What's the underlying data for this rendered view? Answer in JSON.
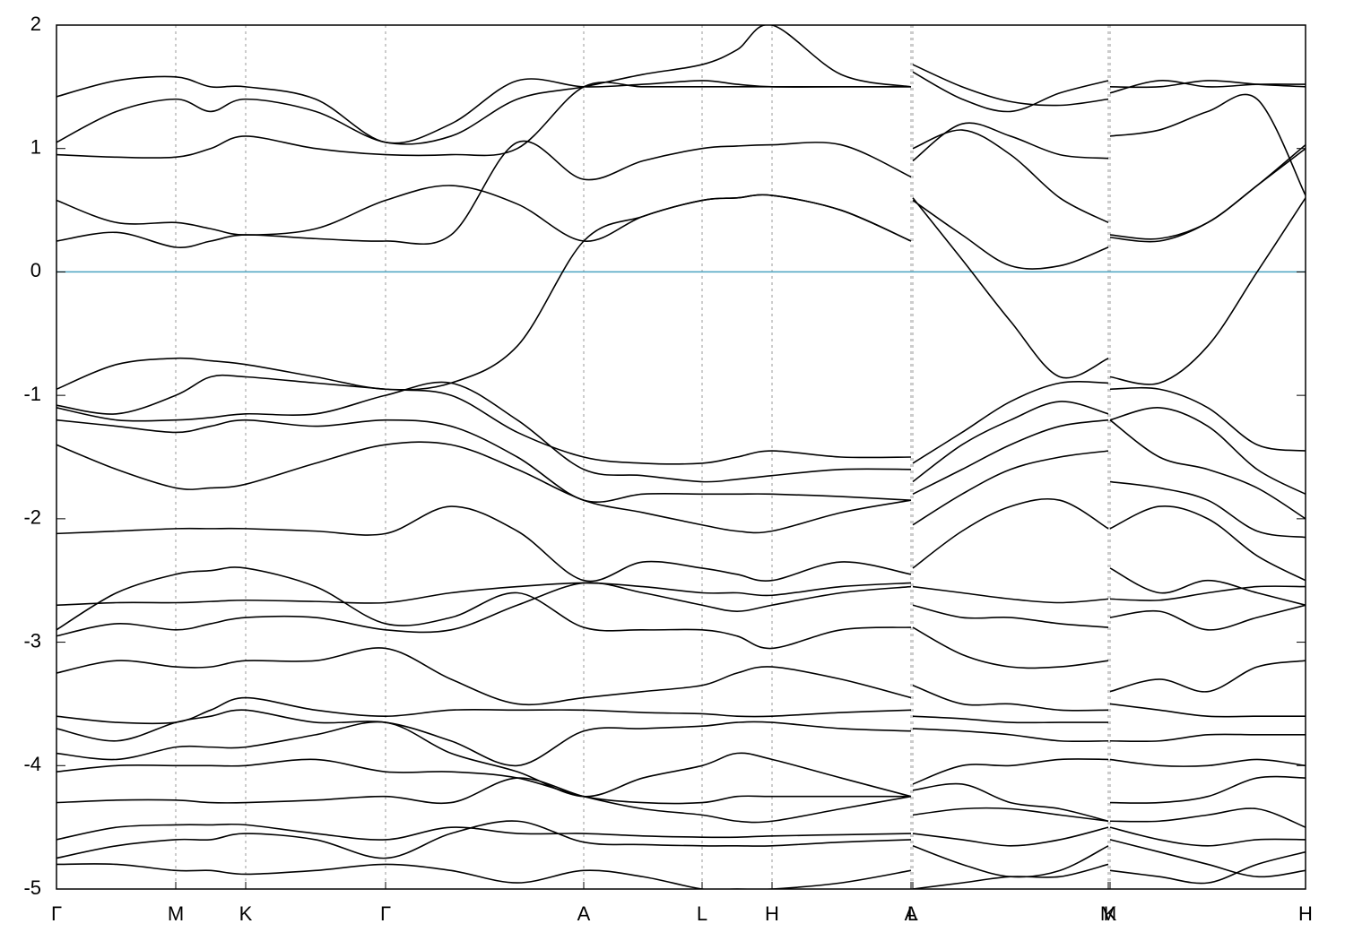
{
  "chart_data": {
    "type": "line",
    "x": [
      0,
      0.67,
      1.33,
      1.72,
      2.11,
      2.89,
      3.67,
      4.4,
      5.14,
      5.88,
      6.54,
      7.2,
      7.59,
      7.98,
      8.75,
      9.53,
      9.54,
      9.55,
      10.1,
      10.64,
      11.19,
      11.73,
      11.74,
      11.75,
      12.3,
      12.84,
      13.39,
      13.93
    ],
    "xlim": [
      0,
      13.93
    ],
    "xticks": [
      {
        "value": 0,
        "label": "Γ"
      },
      {
        "value": 1.33,
        "label": "M"
      },
      {
        "value": 2.11,
        "label": "K"
      },
      {
        "value": 3.67,
        "label": "Γ"
      },
      {
        "value": 5.88,
        "label": "A"
      },
      {
        "value": 7.2,
        "label": "L"
      },
      {
        "value": 7.98,
        "label": "H"
      },
      {
        "value": 9.53,
        "label": "A"
      },
      {
        "value": 9.55,
        "label": "L"
      },
      {
        "value": 11.73,
        "label": "M"
      },
      {
        "value": 11.75,
        "label": "K"
      },
      {
        "value": 13.93,
        "label": "H"
      }
    ],
    "ylim": [
      -5,
      2
    ],
    "yticks": [
      -5,
      -4,
      -3,
      -2,
      -1,
      0,
      1,
      2
    ],
    "xgrid": true,
    "reference_line": {
      "value": 0,
      "color": "#4aa3c0"
    },
    "series": [
      {
        "color": "#000000",
        "values": [
          -0.95,
          -0.75,
          -0.7,
          -0.72,
          -0.75,
          -0.85,
          -0.95,
          -0.9,
          -0.6,
          0.25,
          0.45,
          0.58,
          0.6,
          0.62,
          0.5,
          0.25,
          null,
          0.6,
          0.1,
          -0.4,
          -0.85,
          -0.7,
          null,
          -0.85,
          -0.9,
          -0.6,
          0,
          0.6
        ]
      },
      {
        "color": "#000000",
        "values": [
          0.25,
          0.32,
          0.2,
          0.25,
          0.3,
          0.27,
          0.25,
          0.3,
          1.05,
          0.75,
          0.9,
          1.0,
          1.02,
          1.03,
          1.03,
          0.77,
          null,
          1.0,
          1.15,
          0.95,
          0.6,
          0.4,
          null,
          0.3,
          0.27,
          0.4,
          0.7,
          1.0
        ]
      },
      {
        "color": "#000000",
        "values": [
          0.58,
          0.4,
          0.4,
          0.35,
          0.3,
          0.35,
          0.58,
          0.7,
          0.55,
          0.25,
          0.45,
          0.58,
          0.6,
          0.62,
          0.5,
          0.25,
          null,
          0.58,
          0.3,
          0.05,
          0.05,
          0.2,
          null,
          0.28,
          0.25,
          0.4,
          0.7,
          1.03
        ]
      },
      {
        "color": "#000000",
        "values": [
          0.95,
          0.93,
          0.93,
          1.0,
          1.1,
          1.0,
          0.95,
          0.95,
          1.0,
          1.5,
          1.5,
          1.5,
          1.5,
          1.5,
          1.5,
          1.5,
          null,
          0.9,
          1.2,
          1.1,
          0.95,
          0.92,
          null,
          1.1,
          1.15,
          1.3,
          1.4,
          0.62
        ]
      },
      {
        "color": "#000000",
        "values": [
          1.05,
          1.3,
          1.4,
          1.3,
          1.4,
          1.3,
          1.05,
          1.1,
          1.4,
          1.5,
          1.6,
          1.68,
          1.8,
          2.0,
          1.6,
          1.5,
          null,
          1.68,
          1.5,
          1.38,
          1.35,
          1.4,
          null,
          1.5,
          1.5,
          1.55,
          1.52,
          1.5
        ]
      },
      {
        "color": "#000000",
        "values": [
          1.42,
          1.55,
          1.58,
          1.5,
          1.5,
          1.4,
          1.05,
          1.2,
          1.55,
          1.5,
          1.52,
          1.55,
          1.52,
          1.5,
          1.5,
          1.5,
          null,
          1.62,
          1.4,
          1.3,
          1.45,
          1.55,
          null,
          1.45,
          1.55,
          1.5,
          1.52,
          1.52
        ]
      },
      {
        "color": "#000000",
        "values": [
          -1.08,
          -1.15,
          -1.0,
          -0.85,
          -0.85,
          -0.9,
          -0.95,
          -1.0,
          -1.3,
          -1.5,
          -1.55,
          -1.55,
          -1.5,
          -1.45,
          -1.5,
          -1.5,
          null,
          -1.55,
          -1.3,
          -1.05,
          -0.9,
          -0.9,
          null,
          -0.95,
          -0.95,
          -1.1,
          -1.4,
          -1.45
        ]
      },
      {
        "color": "#000000",
        "values": [
          -1.1,
          -1.2,
          -1.2,
          -1.18,
          -1.15,
          -1.15,
          -1.0,
          -0.9,
          -1.2,
          -1.6,
          -1.65,
          -1.7,
          -1.68,
          -1.65,
          -1.6,
          -1.6,
          null,
          -1.7,
          -1.4,
          -1.2,
          -1.05,
          -1.15,
          null,
          -1.2,
          -1.1,
          -1.25,
          -1.6,
          -1.8
        ]
      },
      {
        "color": "#000000",
        "values": [
          -1.2,
          -1.25,
          -1.3,
          -1.25,
          -1.2,
          -1.25,
          -1.2,
          -1.25,
          -1.5,
          -1.85,
          -1.8,
          -1.8,
          -1.8,
          -1.8,
          -1.82,
          -1.85,
          null,
          -1.8,
          -1.6,
          -1.4,
          -1.25,
          -1.2,
          null,
          -1.2,
          -1.5,
          -1.6,
          -1.75,
          -2.0
        ]
      },
      {
        "color": "#000000",
        "values": [
          -1.4,
          -1.6,
          -1.75,
          -1.75,
          -1.72,
          -1.55,
          -1.4,
          -1.4,
          -1.6,
          -1.85,
          -1.95,
          -2.05,
          -2.1,
          -2.1,
          -1.95,
          -1.85,
          null,
          -2.05,
          -1.8,
          -1.6,
          -1.5,
          -1.45,
          null,
          -1.7,
          -1.75,
          -1.85,
          -2.1,
          -2.15
        ]
      },
      {
        "color": "#000000",
        "values": [
          -2.12,
          -2.1,
          -2.08,
          -2.08,
          -2.08,
          -2.1,
          -2.12,
          -1.9,
          -2.1,
          -2.5,
          -2.35,
          -2.4,
          -2.45,
          -2.5,
          -2.35,
          -2.45,
          null,
          -2.4,
          -2.1,
          -1.9,
          -1.85,
          -2.08,
          null,
          -2.08,
          -1.9,
          -2.0,
          -2.3,
          -2.5
        ]
      },
      {
        "color": "#000000",
        "values": [
          -2.7,
          -2.68,
          -2.68,
          -2.67,
          -2.66,
          -2.67,
          -2.68,
          -2.6,
          -2.55,
          -2.52,
          -2.55,
          -2.6,
          -2.6,
          -2.62,
          -2.55,
          -2.52,
          null,
          -2.55,
          -2.6,
          -2.65,
          -2.68,
          -2.65,
          null,
          -2.65,
          -2.66,
          -2.6,
          -2.55,
          -2.55
        ]
      },
      {
        "color": "#000000",
        "values": [
          -2.9,
          -2.6,
          -2.45,
          -2.42,
          -2.4,
          -2.55,
          -2.85,
          -2.8,
          -2.6,
          -2.88,
          -2.9,
          -2.9,
          -2.95,
          -3.05,
          -2.9,
          -2.88,
          null,
          -2.88,
          -3.1,
          -3.2,
          -3.2,
          -3.15,
          null,
          -2.4,
          -2.6,
          -2.5,
          -2.6,
          -2.7
        ]
      },
      {
        "color": "#000000",
        "values": [
          -2.95,
          -2.85,
          -2.9,
          -2.85,
          -2.8,
          -2.8,
          -2.9,
          -2.9,
          -2.7,
          -2.52,
          -2.6,
          -2.7,
          -2.75,
          -2.7,
          -2.6,
          -2.55,
          null,
          -2.7,
          -2.8,
          -2.8,
          -2.85,
          -2.88,
          null,
          -2.8,
          -2.75,
          -2.9,
          -2.8,
          -2.7
        ]
      },
      {
        "color": "#000000",
        "values": [
          -3.25,
          -3.15,
          -3.2,
          -3.2,
          -3.15,
          -3.15,
          -3.05,
          -3.3,
          -3.5,
          -3.45,
          -3.4,
          -3.35,
          -3.25,
          -3.2,
          -3.3,
          -3.45,
          null,
          -3.35,
          -3.5,
          -3.5,
          -3.55,
          -3.55,
          null,
          -3.4,
          -3.3,
          -3.4,
          -3.2,
          -3.15
        ]
      },
      {
        "color": "#000000",
        "values": [
          -3.6,
          -3.65,
          -3.65,
          -3.55,
          -3.45,
          -3.55,
          -3.6,
          -3.55,
          -3.55,
          -3.55,
          -3.57,
          -3.58,
          -3.6,
          -3.6,
          -3.57,
          -3.55,
          null,
          -3.6,
          -3.62,
          -3.65,
          -3.65,
          -3.65,
          null,
          -3.5,
          -3.55,
          -3.6,
          -3.6,
          -3.6
        ]
      },
      {
        "color": "#000000",
        "values": [
          -3.7,
          -3.8,
          -3.65,
          -3.6,
          -3.55,
          -3.65,
          -3.65,
          -3.8,
          -4.0,
          -3.72,
          -3.7,
          -3.68,
          -3.65,
          -3.65,
          -3.7,
          -3.72,
          null,
          -3.7,
          -3.72,
          -3.75,
          -3.8,
          -3.8,
          null,
          -3.8,
          -3.8,
          -3.75,
          -3.75,
          -3.75
        ]
      },
      {
        "color": "#000000",
        "values": [
          -3.9,
          -3.95,
          -3.85,
          -3.85,
          -3.85,
          -3.75,
          -3.65,
          -3.9,
          -4.05,
          -4.25,
          -4.1,
          -4.0,
          -3.9,
          -3.95,
          -4.1,
          -4.25,
          null,
          -4.15,
          -4.0,
          -4.0,
          -3.95,
          -3.95,
          null,
          -3.95,
          -4.0,
          -4.0,
          -3.95,
          -4.0
        ]
      },
      {
        "color": "#000000",
        "values": [
          -4.05,
          -4.0,
          -4.0,
          -4.0,
          -4.0,
          -3.95,
          -4.05,
          -4.05,
          -4.1,
          -4.25,
          -4.3,
          -4.3,
          -4.25,
          -4.25,
          -4.25,
          -4.25,
          null,
          -4.2,
          -4.15,
          -4.3,
          -4.35,
          -4.45,
          null,
          -4.3,
          -4.3,
          -4.25,
          -4.1,
          -4.1
        ]
      },
      {
        "color": "#000000",
        "values": [
          -4.3,
          -4.28,
          -4.28,
          -4.3,
          -4.3,
          -4.28,
          -4.25,
          -4.3,
          -4.1,
          -4.25,
          -4.35,
          -4.4,
          -4.45,
          -4.45,
          -4.35,
          -4.25,
          null,
          -4.4,
          -4.35,
          -4.35,
          -4.4,
          -4.45,
          null,
          -4.45,
          -4.45,
          -4.4,
          -4.35,
          -4.5
        ]
      },
      {
        "color": "#000000",
        "values": [
          -4.6,
          -4.5,
          -4.48,
          -4.48,
          -4.48,
          -4.55,
          -4.6,
          -4.5,
          -4.55,
          -4.55,
          -4.57,
          -4.58,
          -4.58,
          -4.57,
          -4.56,
          -4.55,
          null,
          -4.55,
          -4.6,
          -4.65,
          -4.6,
          -4.5,
          null,
          -4.5,
          -4.6,
          -4.65,
          -4.6,
          -4.6
        ]
      },
      {
        "color": "#000000",
        "values": [
          -4.75,
          -4.65,
          -4.6,
          -4.6,
          -4.55,
          -4.6,
          -4.75,
          -4.55,
          -4.45,
          -4.62,
          -4.64,
          -4.65,
          -4.65,
          -4.65,
          -4.62,
          -4.6,
          null,
          -4.65,
          -4.8,
          -4.9,
          -4.85,
          -4.65,
          null,
          -4.85,
          -4.9,
          -4.95,
          -4.8,
          -4.7
        ]
      },
      {
        "color": "#000000",
        "values": [
          -4.8,
          -4.8,
          -4.85,
          -4.85,
          -4.88,
          -4.85,
          -4.8,
          -4.85,
          -4.95,
          -4.85,
          -4.9,
          -5.0,
          -5.0,
          -5.0,
          -4.95,
          -4.85,
          null,
          -5.0,
          -4.95,
          -4.9,
          -4.9,
          -4.8,
          null,
          -4.6,
          -4.7,
          -4.8,
          -4.9,
          -4.85
        ]
      }
    ]
  }
}
